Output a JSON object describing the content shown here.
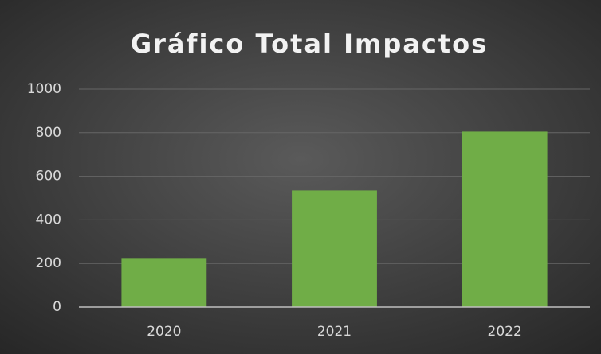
{
  "chart_data": {
    "type": "bar",
    "title": "Gráfico Total Impactos",
    "categories": [
      "2020",
      "2021",
      "2022"
    ],
    "values": [
      225,
      535,
      805
    ],
    "color": "#70ad47",
    "ylim": [
      0,
      1000
    ],
    "yticks": [
      0,
      200,
      400,
      600,
      800,
      1000
    ],
    "grid": true
  }
}
